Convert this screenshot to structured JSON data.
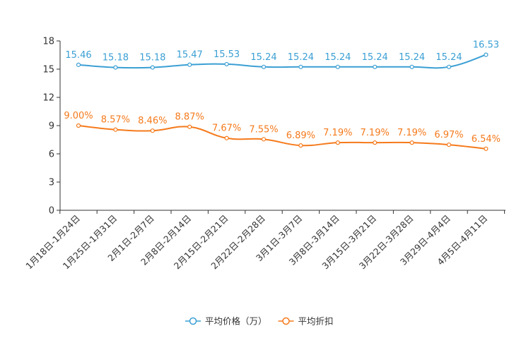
{
  "chart_data": {
    "type": "line",
    "categories": [
      "1月18日-1月24日",
      "1月25日-1月31日",
      "2月1日-2月7日",
      "2月8日-2月14日",
      "2月15日-2月21日",
      "2月22日-2月28日",
      "3月1日-3月7日",
      "3月8日-3月14日",
      "3月15日-3月21日",
      "3月22日-3月28日",
      "3月29日-4月4日",
      "4月5日-4月11日"
    ],
    "series": [
      {
        "name": "平均价格（万）",
        "color": "#3a9fd4",
        "values": [
          15.46,
          15.18,
          15.18,
          15.47,
          15.53,
          15.24,
          15.24,
          15.24,
          15.24,
          15.24,
          15.24,
          16.53
        ],
        "labels": [
          "15.46",
          "15.18",
          "15.18",
          "15.47",
          "15.53",
          "15.24",
          "15.24",
          "15.24",
          "15.24",
          "15.24",
          "15.24",
          "16.53"
        ]
      },
      {
        "name": "平均折扣",
        "color": "#f57a1b",
        "values": [
          9.0,
          8.57,
          8.46,
          8.87,
          7.67,
          7.55,
          6.89,
          7.19,
          7.19,
          7.19,
          6.97,
          6.54
        ],
        "labels": [
          "9.00%",
          "8.57%",
          "8.46%",
          "8.87%",
          "7.67%",
          "7.55%",
          "6.89%",
          "7.19%",
          "7.19%",
          "7.19%",
          "6.97%",
          "6.54%"
        ]
      }
    ],
    "yticks": [
      "0",
      "3",
      "6",
      "9",
      "12",
      "15",
      "18"
    ],
    "ylim": [
      0,
      18
    ],
    "title": "",
    "xlabel": "",
    "ylabel": "",
    "legend_position": "bottom-center"
  }
}
